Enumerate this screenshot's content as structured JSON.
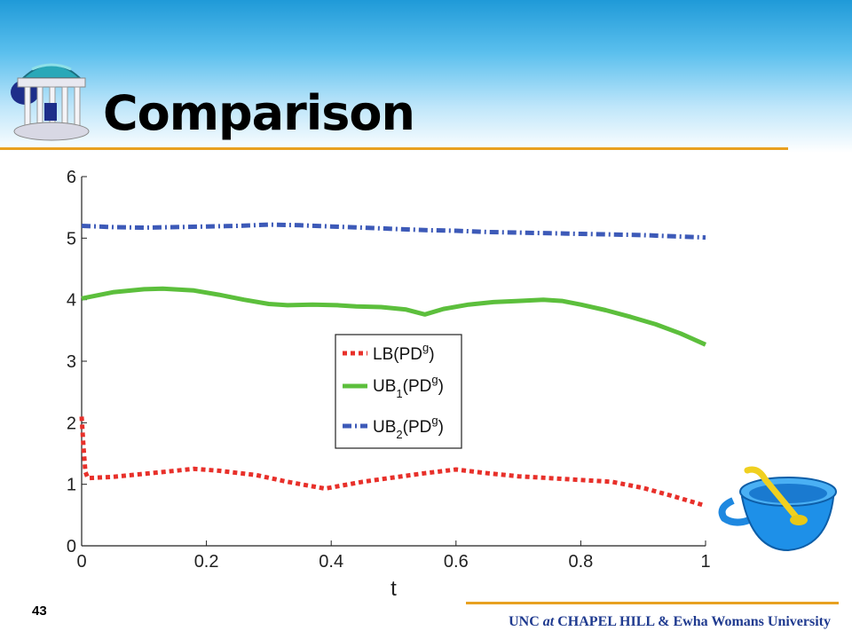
{
  "slide": {
    "title": "Comparison",
    "page_number": "43",
    "footer_part1": "UNC ",
    "footer_at": "at",
    "footer_part2": " CHAPEL HILL & Ewha Womans University"
  },
  "colors": {
    "lb": "#e8302a",
    "ub1": "#5cbf3c",
    "ub2": "#3d5ab8",
    "rule": "#e8a020",
    "footer": "#1f3a8f"
  },
  "chart_data": {
    "type": "line",
    "title": "",
    "xlabel": "t",
    "ylabel": "",
    "xlim": [
      0,
      1
    ],
    "ylim": [
      0,
      6
    ],
    "xticks": [
      0,
      0.2,
      0.4,
      0.6,
      0.8,
      1
    ],
    "xtick_labels": [
      "0",
      "0.2",
      "0.4",
      "0.6",
      "0.8",
      "1"
    ],
    "yticks": [
      0,
      1,
      2,
      3,
      4,
      5,
      6
    ],
    "ytick_labels": [
      "0",
      "1",
      "2",
      "3",
      "4",
      "5",
      "6"
    ],
    "grid": false,
    "legend_position": "center",
    "legend": [
      {
        "base": "LB",
        "sub": "",
        "args": "(PD",
        "sup": "g",
        "close": ")"
      },
      {
        "base": "UB",
        "sub": "1",
        "args": "(PD",
        "sup": "g",
        "close": ")"
      },
      {
        "base": "UB",
        "sub": "2",
        "args": "(PD",
        "sup": "g",
        "close": ")"
      }
    ],
    "series": [
      {
        "x": [
          0,
          0.003,
          0.006,
          0.01,
          0.05,
          0.1,
          0.15,
          0.18,
          0.22,
          0.28,
          0.33,
          0.39,
          0.45,
          0.5,
          0.55,
          0.6,
          0.65,
          0.7,
          0.75,
          0.8,
          0.85,
          0.9,
          0.95,
          1.0
        ],
        "y": [
          2.1,
          1.6,
          1.2,
          1.1,
          1.12,
          1.17,
          1.22,
          1.25,
          1.22,
          1.15,
          1.04,
          0.93,
          1.04,
          1.11,
          1.18,
          1.24,
          1.18,
          1.13,
          1.1,
          1.07,
          1.04,
          0.94,
          0.8,
          0.65
        ]
      },
      {
        "x": [
          0,
          0.05,
          0.1,
          0.13,
          0.18,
          0.22,
          0.26,
          0.3,
          0.33,
          0.37,
          0.41,
          0.44,
          0.48,
          0.52,
          0.55,
          0.58,
          0.62,
          0.66,
          0.7,
          0.74,
          0.77,
          0.8,
          0.84,
          0.88,
          0.92,
          0.96,
          1.0
        ],
        "y": [
          4.02,
          4.12,
          4.17,
          4.18,
          4.15,
          4.08,
          4.0,
          3.93,
          3.91,
          3.92,
          3.91,
          3.89,
          3.88,
          3.84,
          3.76,
          3.85,
          3.92,
          3.96,
          3.98,
          4.0,
          3.98,
          3.92,
          3.83,
          3.72,
          3.6,
          3.45,
          3.27
        ]
      },
      {
        "x": [
          0,
          0.05,
          0.1,
          0.15,
          0.2,
          0.25,
          0.3,
          0.35,
          0.4,
          0.45,
          0.5,
          0.55,
          0.6,
          0.65,
          0.7,
          0.75,
          0.8,
          0.85,
          0.9,
          0.95,
          1.0
        ],
        "y": [
          5.2,
          5.18,
          5.17,
          5.18,
          5.19,
          5.2,
          5.22,
          5.21,
          5.19,
          5.17,
          5.15,
          5.13,
          5.12,
          5.1,
          5.09,
          5.08,
          5.07,
          5.06,
          5.05,
          5.03,
          5.01
        ]
      }
    ]
  }
}
